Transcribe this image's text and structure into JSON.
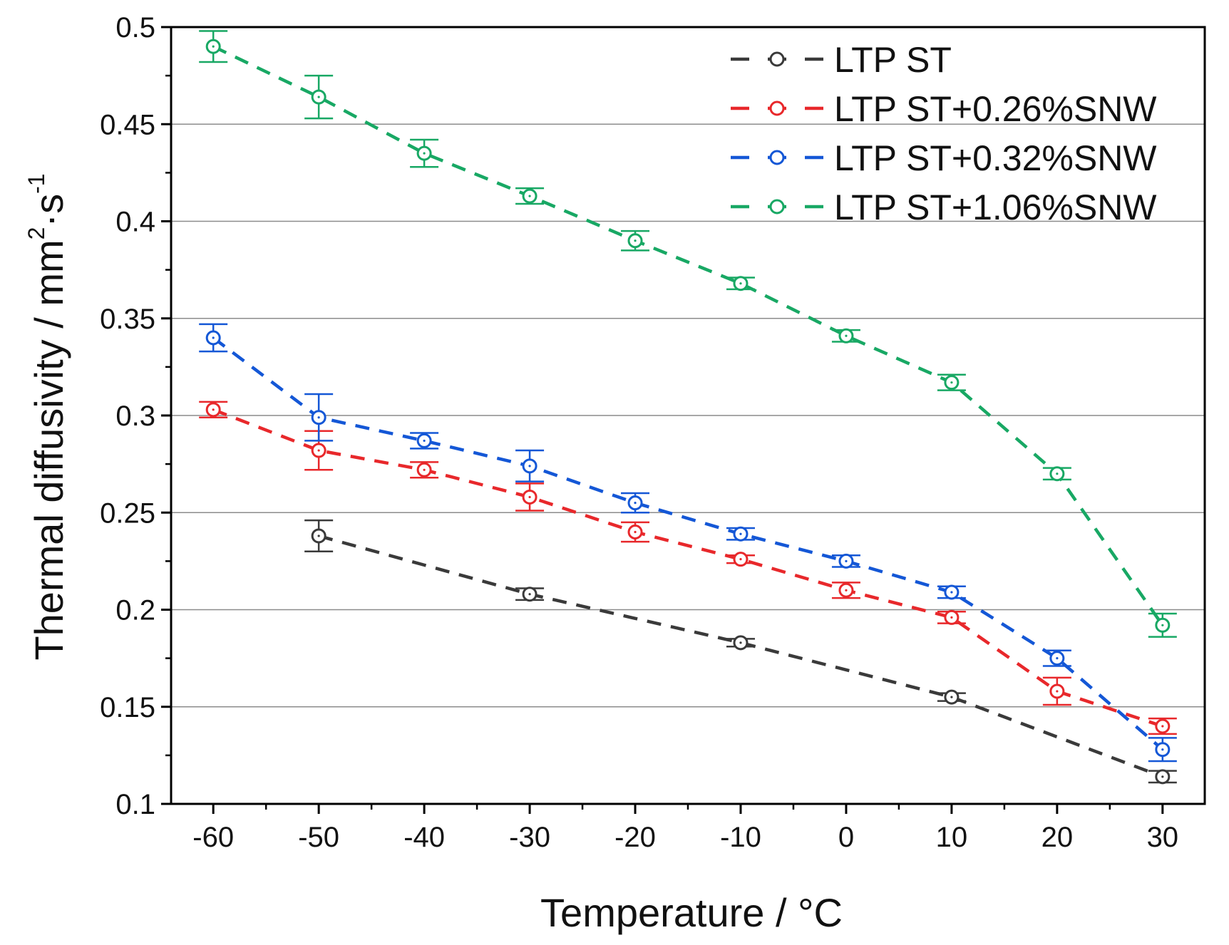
{
  "chart_data": {
    "type": "line",
    "title": "",
    "xlabel": "Temperature / °C",
    "ylabel": {
      "main": "Thermal diffusivity / mm",
      "sup1": "2",
      "mid": "·s",
      "sup2": "-1"
    },
    "xlim": [
      -64,
      34
    ],
    "ylim": [
      0.1,
      0.5
    ],
    "x_ticks": [
      "-60",
      "-50",
      "-40",
      "-30",
      "-20",
      "-10",
      "0",
      "10",
      "20",
      "30"
    ],
    "y_ticks": [
      "0.1",
      "0.15",
      "0.2",
      "0.25",
      "0.3",
      "0.35",
      "0.4",
      "0.45",
      "0.5"
    ],
    "grid": "horizontal",
    "legend_position": "top-right",
    "series": [
      {
        "name": "LTP ST",
        "color": "#3a3a3a",
        "points": [
          {
            "x": -50,
            "y": 0.238,
            "err": 0.008
          },
          {
            "x": -30,
            "y": 0.208,
            "err": 0.003
          },
          {
            "x": -10,
            "y": 0.183,
            "err": 0.002
          },
          {
            "x": 10,
            "y": 0.155,
            "err": 0.002
          },
          {
            "x": 30,
            "y": 0.114,
            "err": 0.003
          }
        ]
      },
      {
        "name": "LTP ST+0.26%SNW",
        "color": "#e8282b",
        "points": [
          {
            "x": -60,
            "y": 0.303,
            "err": 0.004
          },
          {
            "x": -50,
            "y": 0.282,
            "err": 0.01
          },
          {
            "x": -40,
            "y": 0.272,
            "err": 0.004
          },
          {
            "x": -30,
            "y": 0.258,
            "err": 0.007
          },
          {
            "x": -20,
            "y": 0.24,
            "err": 0.005
          },
          {
            "x": -10,
            "y": 0.226,
            "err": 0.002
          },
          {
            "x": 0,
            "y": 0.21,
            "err": 0.004
          },
          {
            "x": 10,
            "y": 0.196,
            "err": 0.003
          },
          {
            "x": 20,
            "y": 0.158,
            "err": 0.007
          },
          {
            "x": 30,
            "y": 0.14,
            "err": 0.004
          }
        ]
      },
      {
        "name": "LTP ST+0.32%SNW",
        "color": "#1457d6",
        "points": [
          {
            "x": -60,
            "y": 0.34,
            "err": 0.007
          },
          {
            "x": -50,
            "y": 0.299,
            "err": 0.012
          },
          {
            "x": -40,
            "y": 0.287,
            "err": 0.004
          },
          {
            "x": -30,
            "y": 0.274,
            "err": 0.008
          },
          {
            "x": -20,
            "y": 0.255,
            "err": 0.005
          },
          {
            "x": -10,
            "y": 0.239,
            "err": 0.003
          },
          {
            "x": 0,
            "y": 0.225,
            "err": 0.003
          },
          {
            "x": 10,
            "y": 0.209,
            "err": 0.003
          },
          {
            "x": 20,
            "y": 0.175,
            "err": 0.004
          },
          {
            "x": 30,
            "y": 0.128,
            "err": 0.006
          }
        ]
      },
      {
        "name": "LTP ST+1.06%SNW",
        "color": "#18a864",
        "points": [
          {
            "x": -60,
            "y": 0.49,
            "err": 0.008
          },
          {
            "x": -50,
            "y": 0.464,
            "err": 0.011
          },
          {
            "x": -40,
            "y": 0.435,
            "err": 0.007
          },
          {
            "x": -30,
            "y": 0.413,
            "err": 0.004
          },
          {
            "x": -20,
            "y": 0.39,
            "err": 0.005
          },
          {
            "x": -10,
            "y": 0.368,
            "err": 0.003
          },
          {
            "x": 0,
            "y": 0.341,
            "err": 0.003
          },
          {
            "x": 10,
            "y": 0.317,
            "err": 0.004
          },
          {
            "x": 20,
            "y": 0.27,
            "err": 0.003
          },
          {
            "x": 30,
            "y": 0.192,
            "err": 0.006
          }
        ]
      }
    ]
  }
}
